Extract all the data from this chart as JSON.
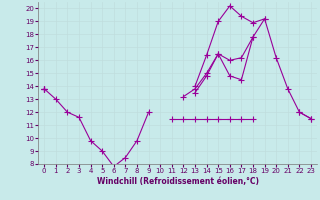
{
  "xlabel": "Windchill (Refroidissement éolien,°C)",
  "background_color": "#c8eaea",
  "grid_color": "#c0dede",
  "line_color": "#990099",
  "x_values": [
    0,
    1,
    2,
    3,
    4,
    5,
    6,
    7,
    8,
    9,
    10,
    11,
    12,
    13,
    14,
    15,
    16,
    17,
    18,
    19,
    20,
    21,
    22,
    23
  ],
  "line1_windchill": [
    13.8,
    13.0,
    12.0,
    11.6,
    9.8,
    9.0,
    7.8,
    8.5,
    9.8,
    12.0,
    null,
    11.5,
    11.5,
    11.5,
    11.5,
    11.5,
    11.5,
    11.5,
    11.5,
    null,
    null,
    null,
    12.0,
    11.5
  ],
  "line2_max": [
    13.8,
    null,
    null,
    null,
    null,
    null,
    null,
    null,
    null,
    null,
    null,
    null,
    null,
    13.5,
    14.8,
    16.5,
    14.8,
    14.5,
    17.8,
    19.2,
    16.2,
    13.8,
    12.0,
    11.5
  ],
  "line3_instants": [
    13.8,
    null,
    null,
    null,
    null,
    null,
    null,
    null,
    null,
    null,
    null,
    null,
    null,
    14.0,
    16.4,
    19.0,
    20.2,
    19.4,
    18.9,
    19.2,
    null,
    null,
    null,
    null
  ],
  "line4_mean": [
    13.8,
    null,
    null,
    null,
    null,
    null,
    null,
    null,
    null,
    null,
    null,
    null,
    13.2,
    13.8,
    15.0,
    16.5,
    16.0,
    16.2,
    17.8,
    null,
    null,
    null,
    null,
    null
  ],
  "ylim": [
    8,
    20.5
  ],
  "xlim": [
    -0.5,
    23.5
  ],
  "yticks": [
    8,
    9,
    10,
    11,
    12,
    13,
    14,
    15,
    16,
    17,
    18,
    19,
    20
  ],
  "xticks": [
    0,
    1,
    2,
    3,
    4,
    5,
    6,
    7,
    8,
    9,
    10,
    11,
    12,
    13,
    14,
    15,
    16,
    17,
    18,
    19,
    20,
    21,
    22,
    23
  ]
}
